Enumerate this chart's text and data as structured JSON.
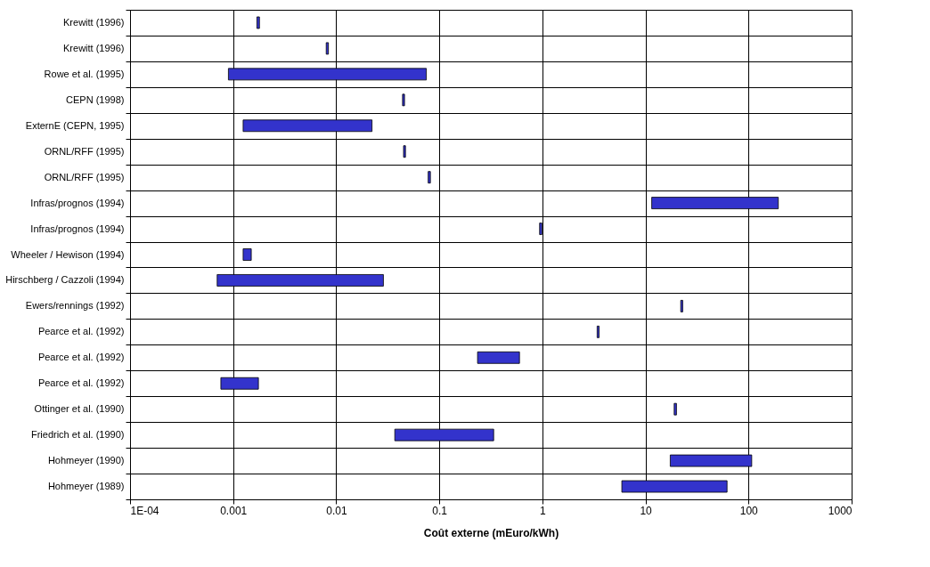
{
  "chart_data": {
    "type": "bar",
    "orientation": "horizontal",
    "xlabel": "Coût externe (mEuro/kWh)",
    "log": "x",
    "grid": true,
    "categories": [
      "Krewitt (1996)",
      "Krewitt (1996)",
      "Rowe et al. (1995)",
      "CEPN (1998)",
      "ExternE (CEPN, 1995)",
      "ORNL/RFF (1995)",
      "ORNL/RFF (1995)",
      "Infras/prognos (1994)",
      "Infras/prognos (1994)",
      "Wheeler / Hewison (1994)",
      "Hirschberg / Cazzoli (1994)",
      "Ewers/rennings (1992)",
      "Pearce et al. (1992)",
      "Pearce et al. (1992)",
      "Pearce et al. (1992)",
      "Ottinger et al. (1990)",
      "Friedrich et al. (1990)",
      "Hohmeyer (1990)",
      "Hohmeyer (1989)"
    ],
    "base": [
      0.0017,
      0.008,
      0.0009,
      0.044,
      0.00125,
      0.045,
      0.078,
      11.5,
      0.94,
      0.00125,
      0.0007,
      22,
      3.4,
      0.235,
      0.00076,
      19,
      0.037,
      17.4,
      5.9
    ],
    "values": [
      0.0001,
      0.0004,
      0.074,
      0.002,
      0.021,
      0.002,
      0.004,
      183,
      0.05,
      0.00025,
      0.028,
      1,
      0.15,
      0.365,
      0.001,
      1,
      0.3,
      90,
      56
    ],
    "color": "#3333cc",
    "xlim": [
      0.0001,
      1000
    ],
    "xticks": [
      {
        "value": 0.0001,
        "label": "1E-04"
      },
      0.001,
      0.01,
      0.1,
      1,
      10,
      100,
      1000
    ]
  }
}
